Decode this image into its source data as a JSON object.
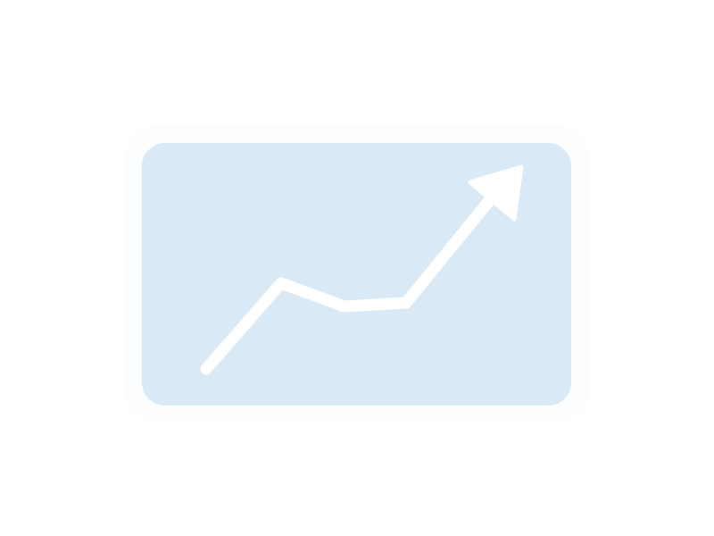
{
  "colors": {
    "background": "#ffffff",
    "card": "#d9e9f6",
    "icon": "#ffffff"
  },
  "icon": {
    "name": "trending-up-arrow-icon"
  }
}
